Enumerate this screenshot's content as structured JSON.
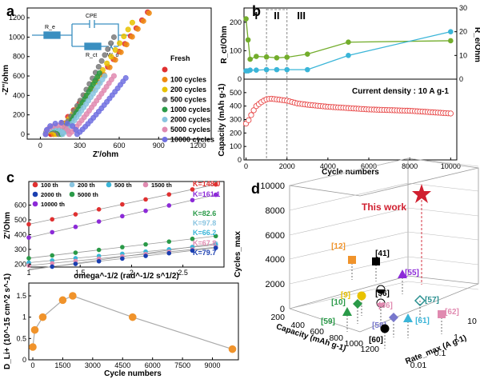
{
  "colors": {
    "fresh": "#e03030",
    "c100": "#ee8a10",
    "c200": "#e8c200",
    "c500": "#7a7a7a",
    "c1000": "#2a9a48",
    "c2000": "#88c4e0",
    "c5000": "#e08ab0",
    "c10000": "#7070e0",
    "green": "#73ad2c",
    "cyan": "#3ab5d8",
    "red": "#e84848",
    "orange": "#f0932b",
    "blue": "#1a3eb0",
    "purple": "#8c2ad8",
    "dred": "#d02030"
  },
  "chart_data": [
    {
      "id": "a",
      "panel_label": "a",
      "type": "scatter",
      "xlabel": "Z'/ohm",
      "ylabel": "-Z''/ohm",
      "xlim": [
        -100,
        1300
      ],
      "ylim": [
        -50,
        1300
      ],
      "xticks": [
        0,
        300,
        600,
        900,
        1200
      ],
      "yticks": [
        0,
        200,
        400,
        600,
        800,
        1000,
        1200
      ],
      "legend_title": "Fresh",
      "circuit": {
        "labels": [
          "R_e",
          "CPE",
          "R_ct",
          "W_o"
        ]
      },
      "series": [
        {
          "name": "Fresh",
          "color": "fresh",
          "x0": 40,
          "r": 20,
          "tailEnd": [
            860,
            1340
          ]
        },
        {
          "name": "100 cycles",
          "color": "c100",
          "x0": 40,
          "r": 30,
          "tailEnd": [
            870,
            1330
          ]
        },
        {
          "name": "200 cycles",
          "color": "c200",
          "x0": 40,
          "r": 40,
          "tailEnd": [
            700,
            1150
          ]
        },
        {
          "name": "500 cycles",
          "color": "c500",
          "x0": 40,
          "r": 50,
          "tailEnd": [
            560,
            1000
          ]
        },
        {
          "name": "1000 cycles",
          "color": "c1000",
          "x0": 40,
          "r": 60,
          "tailEnd": [
            450,
            630
          ]
        },
        {
          "name": "2000 cycles",
          "color": "c2000",
          "x0": 40,
          "r": 65,
          "tailEnd": [
            490,
            600
          ]
        },
        {
          "name": "5000 cycles",
          "color": "c5000",
          "x0": 40,
          "r": 90,
          "tailEnd": [
            560,
            600
          ]
        },
        {
          "name": "10000 cycles",
          "color": "c10000",
          "x0": 40,
          "r": 120,
          "tailEnd": [
            650,
            580
          ]
        }
      ]
    },
    {
      "id": "b_top",
      "panel_label": "b",
      "type": "line",
      "ylabel_left": "R_ct/Ohm",
      "ylabel_right": "R_e/Ohm",
      "xlim": [
        -100,
        10300
      ],
      "ylim_left": [
        0,
        250
      ],
      "ylim_right": [
        0,
        30
      ],
      "yticks_left": [
        0,
        100,
        200
      ],
      "yticks_right": [
        0,
        10,
        20,
        30
      ],
      "regions": [
        "I",
        "II",
        "III"
      ],
      "series": [
        {
          "name": "R_ct",
          "axis": "left",
          "color": "green",
          "x": [
            0,
            100,
            200,
            500,
            1000,
            1500,
            2000,
            3000,
            5000,
            10000
          ],
          "values": [
            212,
            138,
            70,
            80,
            78,
            75,
            77,
            88,
            130,
            135
          ]
        },
        {
          "name": "R_e",
          "axis": "right",
          "color": "cyan",
          "x": [
            0,
            100,
            200,
            500,
            1000,
            1500,
            2000,
            3000,
            5000,
            10000
          ],
          "values": [
            3.5,
            3.5,
            3.8,
            3.8,
            4,
            4,
            4,
            4,
            10,
            20
          ]
        }
      ]
    },
    {
      "id": "b_bottom",
      "type": "scatter",
      "xlabel": "Cycle numbers",
      "ylabel": "Capacity (mAh g-1)",
      "xlim": [
        -100,
        10300
      ],
      "ylim": [
        0,
        600
      ],
      "xticks": [
        0,
        2000,
        4000,
        6000,
        8000,
        10000
      ],
      "yticks": [
        0,
        100,
        200,
        300,
        400,
        500
      ],
      "annotation": "Current density : 10 A g-1",
      "series": [
        {
          "name": "Capacity",
          "color": "red",
          "x": [
            0,
            150,
            300,
            500,
            800,
            1000,
            1200,
            1500,
            2000,
            2500,
            3000,
            4000,
            5000,
            6000,
            7000,
            8000,
            9000,
            10000
          ],
          "values": [
            270,
            300,
            350,
            400,
            435,
            450,
            455,
            450,
            440,
            420,
            410,
            395,
            385,
            375,
            370,
            365,
            355,
            345
          ]
        }
      ]
    },
    {
      "id": "c_top",
      "panel_label": "c",
      "type": "line",
      "xlabel": "omega^-1/2 (rad^-1/2 s^1/2)",
      "ylabel": "Z'/Ohm",
      "xlim": [
        1.0,
        2.9
      ],
      "ylim": [
        180,
        760
      ],
      "xticks": [
        1.0,
        1.5,
        2.0,
        2.5
      ],
      "yticks": [
        200,
        300,
        400,
        500,
        600
      ],
      "series": [
        {
          "name": "100 th",
          "color": "fresh",
          "K": "K=148.0",
          "x": [
            1.0,
            2.82
          ],
          "values": [
            470,
            740
          ]
        },
        {
          "name": "200 th",
          "color": "c2000",
          "K": "K=97.8",
          "x": [
            1.0,
            2.82
          ],
          "values": [
            160,
            340
          ]
        },
        {
          "name": "500 th",
          "color": "cyan",
          "K": "K=66.2",
          "x": [
            1.0,
            2.82
          ],
          "values": [
            210,
            330
          ]
        },
        {
          "name": "1500 th",
          "color": "c5000",
          "K": "K=67.8",
          "x": [
            1.0,
            2.82
          ],
          "values": [
            190,
            315
          ]
        },
        {
          "name": "2000 th",
          "color": "blue",
          "K": "K=79.7",
          "x": [
            1.0,
            2.82
          ],
          "values": [
            165,
            310
          ]
        },
        {
          "name": "5000 th",
          "color": "c1000",
          "K": "K=82.6",
          "x": [
            1.0,
            2.82
          ],
          "values": [
            240,
            390
          ]
        },
        {
          "name": "10000 th",
          "color": "purple",
          "K": "K=161.1",
          "x": [
            1.0,
            2.82
          ],
          "values": [
            380,
            670
          ]
        }
      ]
    },
    {
      "id": "c_bottom",
      "type": "line",
      "xlabel": "Cycle numbers",
      "ylabel": "D_Li+ (10^-15 cm^2 s^-1)",
      "xlim": [
        -200,
        10300
      ],
      "ylim": [
        0,
        1.8
      ],
      "xticks": [
        0,
        1500,
        3000,
        4500,
        6000,
        7500,
        9000
      ],
      "yticks": [
        0.0,
        0.5,
        1.0,
        1.5
      ],
      "series": [
        {
          "name": "D_Li+",
          "color": "orange",
          "x": [
            0,
            100,
            500,
            1500,
            2000,
            5000,
            10000
          ],
          "values": [
            0.3,
            0.7,
            1.0,
            1.4,
            1.5,
            1.0,
            0.25
          ]
        }
      ]
    },
    {
      "id": "d",
      "panel_label": "d",
      "type": "scatter",
      "xlabel": "Capacity (mAh g-1)",
      "ylabel": "Cycles_max",
      "zlabel": "Rate_max (A g-1)",
      "xticks": [
        200,
        400,
        600,
        800,
        1000,
        1200
      ],
      "yticks": [
        0,
        2000,
        4000,
        6000,
        8000,
        10000
      ],
      "zticks": [
        0.01,
        0.1,
        1,
        10
      ],
      "highlight": "This work",
      "points": [
        {
          "label": "[12]",
          "color": "orange"
        },
        {
          "label": "[41]",
          "color": "#000000"
        },
        {
          "label": "[55]",
          "color": "purple"
        },
        {
          "label": "[56]",
          "color": "#000000"
        },
        {
          "label": "[9]",
          "color": "c200"
        },
        {
          "label": "[10]",
          "color": "c1000"
        },
        {
          "label": "[36]",
          "color": "c5000"
        },
        {
          "label": "[57]",
          "color": "#2a9090"
        },
        {
          "label": "[62]",
          "color": "c5000"
        },
        {
          "label": "[59]",
          "color": "c1000"
        },
        {
          "label": "[58]",
          "color": "#7777cc"
        },
        {
          "label": "[61]",
          "color": "cyan"
        },
        {
          "label": "[60]",
          "color": "#000000"
        }
      ]
    }
  ]
}
